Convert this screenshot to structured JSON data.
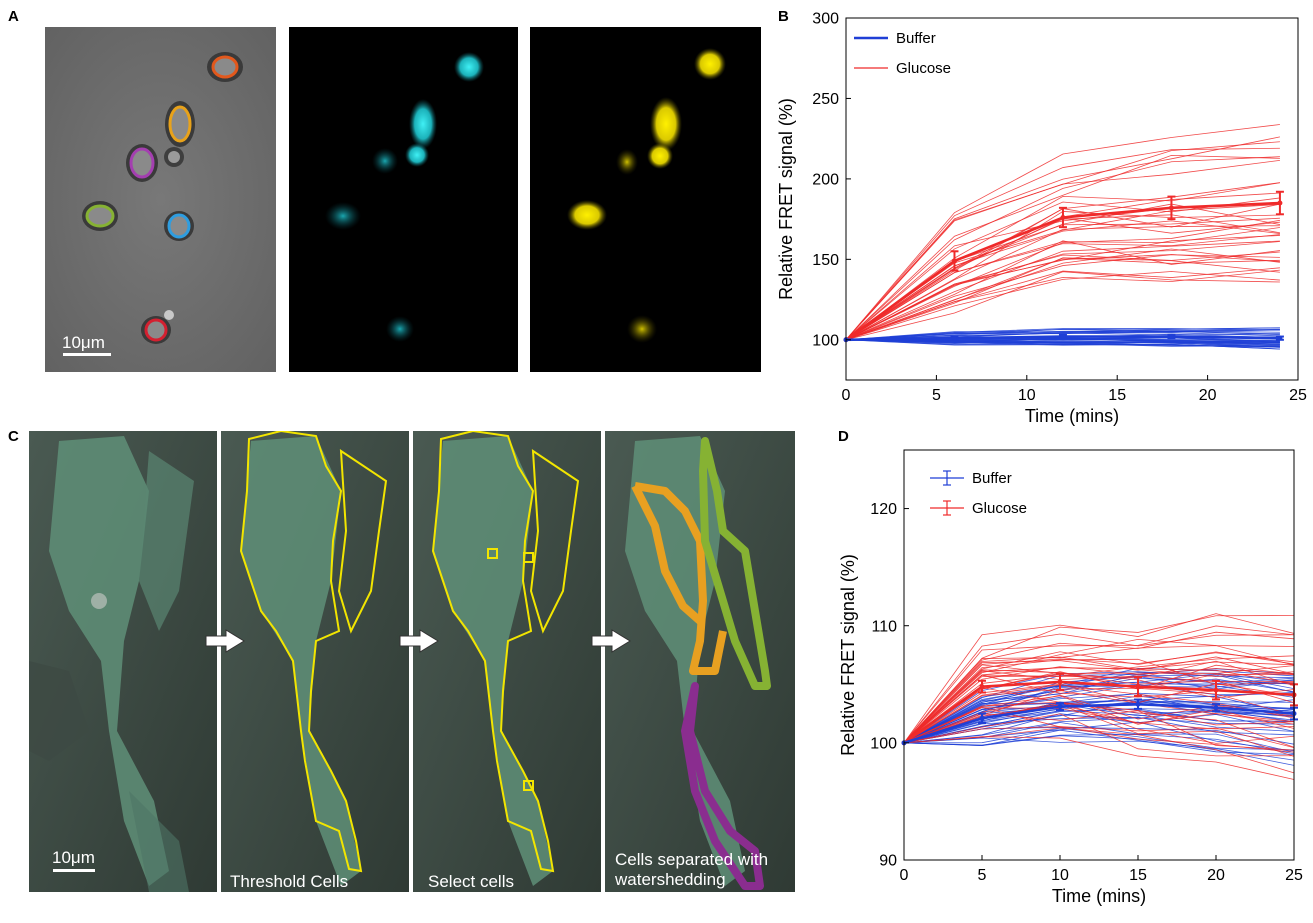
{
  "figure": {
    "panel_labels": {
      "a": "A",
      "b": "B",
      "c": "C",
      "d": "D"
    }
  },
  "panel_a": {
    "scale_bar": "10μm",
    "images": [
      "brightfield-segmentation",
      "cyan-channel",
      "yellow-channel"
    ],
    "outline_colors": [
      "#e2581c",
      "#e8a21a",
      "#a43fb0",
      "#86b233",
      "#2e9de0",
      "#d42030"
    ]
  },
  "panel_c": {
    "scale_bar": "10μm",
    "captions": [
      "Threshold Cells",
      "Select cells",
      "Cells separated with watershedding"
    ],
    "outline_colors": {
      "threshold": "#f2e500",
      "region1": "#e8a021",
      "region2": "#86b233",
      "region3": "#8a2d8f"
    }
  },
  "chart_data": [
    {
      "id": "B",
      "type": "line",
      "xlabel": "Time (mins)",
      "ylabel": "Relative FRET signal (%)",
      "xlim": [
        0,
        25
      ],
      "ylim": [
        75,
        300
      ],
      "xticks": [
        0,
        5,
        10,
        15,
        20,
        25
      ],
      "yticks": [
        100,
        150,
        200,
        250,
        300
      ],
      "legend": {
        "placement": "top-left",
        "entries": [
          "Buffer",
          "Glucose"
        ]
      },
      "colors": {
        "Buffer": "#1f3fd6",
        "Glucose": "#ef2a2a"
      },
      "x": [
        0,
        6,
        12,
        18,
        24
      ],
      "series": [
        {
          "name": "Glucose",
          "kind": "mean",
          "values": [
            100,
            149,
            176,
            182,
            185
          ],
          "error": [
            0,
            6,
            6,
            7,
            7
          ]
        },
        {
          "name": "Buffer",
          "kind": "mean",
          "values": [
            100,
            101,
            102,
            102,
            101
          ],
          "error": [
            0,
            1,
            1,
            1,
            1
          ]
        }
      ]
    },
    {
      "id": "D",
      "type": "line",
      "xlabel": "Time (mins)",
      "ylabel": "Relative FRET signal (%)",
      "xlim": [
        0,
        25
      ],
      "ylim": [
        90,
        125
      ],
      "xticks": [
        0,
        5,
        10,
        15,
        20,
        25
      ],
      "yticks": [
        90,
        100,
        110,
        120
      ],
      "legend": {
        "placement": "top-left",
        "entries": [
          "Buffer",
          "Glucose"
        ]
      },
      "colors": {
        "Buffer": "#1f3fd6",
        "Glucose": "#ef2a2a"
      },
      "x": [
        0,
        5,
        10,
        15,
        20,
        25
      ],
      "series": [
        {
          "name": "Glucose",
          "kind": "mean",
          "values": [
            100,
            104.8,
            105.2,
            104.8,
            104.5,
            104.1
          ],
          "error": [
            0,
            0.5,
            0.7,
            0.8,
            0.8,
            0.9
          ]
        },
        {
          "name": "Buffer",
          "kind": "mean",
          "values": [
            100,
            102.1,
            103.1,
            103.3,
            103,
            102.5
          ],
          "error": [
            0,
            0.4,
            0.3,
            0.4,
            0.3,
            0.5
          ]
        }
      ]
    }
  ]
}
